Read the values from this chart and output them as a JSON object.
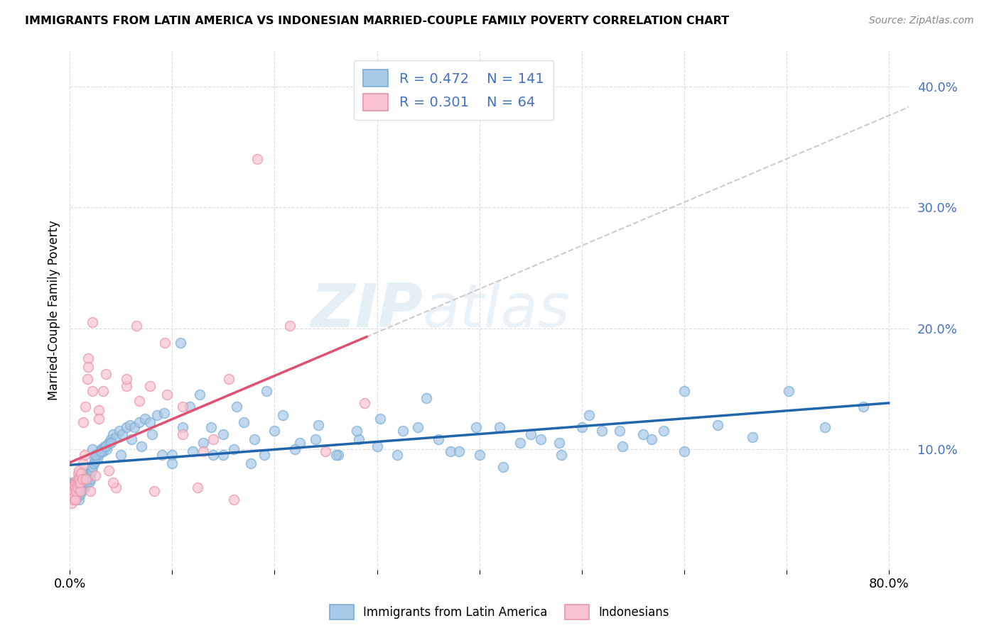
{
  "title": "IMMIGRANTS FROM LATIN AMERICA VS INDONESIAN MARRIED-COUPLE FAMILY POVERTY CORRELATION CHART",
  "source": "Source: ZipAtlas.com",
  "ylabel": "Married-Couple Family Poverty",
  "xlim": [
    0.0,
    0.82
  ],
  "ylim": [
    0.0,
    0.43
  ],
  "blue_R": 0.472,
  "blue_N": 141,
  "pink_R": 0.301,
  "pink_N": 64,
  "blue_color": "#a8c8e8",
  "blue_edge_color": "#7aadd4",
  "blue_line_color": "#2166ac",
  "pink_color": "#f9c4d0",
  "pink_edge_color": "#e896aa",
  "pink_line_color": "#e05070",
  "dash_line_color": "#cccccc",
  "watermark_zip": "ZIP",
  "watermark_atlas": "atlas",
  "legend_label_blue": "Immigrants from Latin America",
  "legend_label_pink": "Indonesians",
  "blue_x": [
    0.001,
    0.002,
    0.002,
    0.003,
    0.003,
    0.004,
    0.004,
    0.004,
    0.005,
    0.005,
    0.005,
    0.006,
    0.006,
    0.006,
    0.007,
    0.007,
    0.007,
    0.008,
    0.008,
    0.008,
    0.009,
    0.009,
    0.009,
    0.01,
    0.01,
    0.01,
    0.011,
    0.011,
    0.012,
    0.012,
    0.013,
    0.013,
    0.014,
    0.014,
    0.015,
    0.015,
    0.016,
    0.016,
    0.017,
    0.017,
    0.018,
    0.018,
    0.019,
    0.019,
    0.02,
    0.02,
    0.021,
    0.022,
    0.023,
    0.024,
    0.025,
    0.026,
    0.027,
    0.028,
    0.029,
    0.03,
    0.032,
    0.034,
    0.036,
    0.038,
    0.04,
    0.042,
    0.045,
    0.048,
    0.051,
    0.055,
    0.059,
    0.063,
    0.068,
    0.073,
    0.078,
    0.085,
    0.092,
    0.1,
    0.108,
    0.117,
    0.127,
    0.138,
    0.15,
    0.163,
    0.177,
    0.192,
    0.208,
    0.225,
    0.243,
    0.262,
    0.282,
    0.303,
    0.325,
    0.348,
    0.372,
    0.397,
    0.423,
    0.45,
    0.478,
    0.507,
    0.537,
    0.568,
    0.6,
    0.633,
    0.667,
    0.702,
    0.738,
    0.775,
    0.022,
    0.025,
    0.03,
    0.035,
    0.04,
    0.05,
    0.06,
    0.07,
    0.08,
    0.09,
    0.1,
    0.11,
    0.12,
    0.13,
    0.14,
    0.15,
    0.16,
    0.17,
    0.18,
    0.19,
    0.2,
    0.22,
    0.24,
    0.26,
    0.28,
    0.3,
    0.32,
    0.34,
    0.36,
    0.38,
    0.4,
    0.42,
    0.44,
    0.46,
    0.48,
    0.5,
    0.52,
    0.54,
    0.56,
    0.58,
    0.6
  ],
  "blue_y": [
    0.068,
    0.072,
    0.065,
    0.07,
    0.063,
    0.068,
    0.072,
    0.06,
    0.065,
    0.07,
    0.058,
    0.063,
    0.068,
    0.062,
    0.067,
    0.072,
    0.06,
    0.065,
    0.07,
    0.063,
    0.068,
    0.073,
    0.058,
    0.063,
    0.068,
    0.072,
    0.065,
    0.07,
    0.068,
    0.073,
    0.07,
    0.075,
    0.068,
    0.073,
    0.07,
    0.075,
    0.073,
    0.078,
    0.072,
    0.077,
    0.075,
    0.08,
    0.073,
    0.078,
    0.075,
    0.08,
    0.082,
    0.085,
    0.088,
    0.092,
    0.09,
    0.095,
    0.092,
    0.096,
    0.098,
    0.1,
    0.098,
    0.102,
    0.1,
    0.105,
    0.108,
    0.112,
    0.11,
    0.115,
    0.112,
    0.118,
    0.12,
    0.118,
    0.122,
    0.125,
    0.122,
    0.128,
    0.13,
    0.095,
    0.188,
    0.135,
    0.145,
    0.118,
    0.095,
    0.135,
    0.088,
    0.148,
    0.128,
    0.105,
    0.12,
    0.095,
    0.108,
    0.125,
    0.115,
    0.142,
    0.098,
    0.118,
    0.085,
    0.112,
    0.105,
    0.128,
    0.115,
    0.108,
    0.098,
    0.12,
    0.11,
    0.148,
    0.118,
    0.135,
    0.1,
    0.095,
    0.098,
    0.102,
    0.105,
    0.095,
    0.108,
    0.102,
    0.112,
    0.095,
    0.088,
    0.118,
    0.098,
    0.105,
    0.095,
    0.112,
    0.1,
    0.122,
    0.108,
    0.095,
    0.115,
    0.1,
    0.108,
    0.095,
    0.115,
    0.102,
    0.095,
    0.118,
    0.108,
    0.098,
    0.095,
    0.118,
    0.105,
    0.108,
    0.095,
    0.118,
    0.115,
    0.102,
    0.112,
    0.115,
    0.148
  ],
  "pink_x": [
    0.001,
    0.001,
    0.002,
    0.002,
    0.002,
    0.003,
    0.003,
    0.003,
    0.004,
    0.004,
    0.004,
    0.005,
    0.005,
    0.005,
    0.006,
    0.006,
    0.007,
    0.007,
    0.008,
    0.008,
    0.009,
    0.009,
    0.01,
    0.01,
    0.011,
    0.012,
    0.013,
    0.014,
    0.015,
    0.016,
    0.017,
    0.018,
    0.02,
    0.022,
    0.025,
    0.028,
    0.032,
    0.038,
    0.045,
    0.055,
    0.065,
    0.078,
    0.093,
    0.11,
    0.13,
    0.155,
    0.183,
    0.215,
    0.25,
    0.288,
    0.013,
    0.018,
    0.022,
    0.028,
    0.035,
    0.042,
    0.055,
    0.068,
    0.082,
    0.095,
    0.11,
    0.125,
    0.14,
    0.16
  ],
  "pink_y": [
    0.065,
    0.06,
    0.068,
    0.06,
    0.055,
    0.065,
    0.058,
    0.062,
    0.07,
    0.065,
    0.06,
    0.058,
    0.073,
    0.068,
    0.065,
    0.072,
    0.075,
    0.068,
    0.08,
    0.072,
    0.082,
    0.075,
    0.065,
    0.072,
    0.08,
    0.075,
    0.088,
    0.095,
    0.135,
    0.075,
    0.158,
    0.175,
    0.065,
    0.148,
    0.078,
    0.132,
    0.148,
    0.082,
    0.068,
    0.152,
    0.202,
    0.152,
    0.188,
    0.112,
    0.098,
    0.158,
    0.34,
    0.202,
    0.098,
    0.138,
    0.122,
    0.168,
    0.205,
    0.125,
    0.162,
    0.072,
    0.158,
    0.14,
    0.065,
    0.145,
    0.135,
    0.068,
    0.108,
    0.058
  ]
}
